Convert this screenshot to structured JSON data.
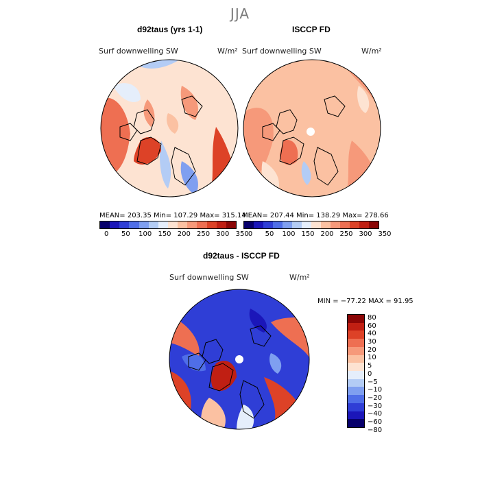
{
  "season": "JJA",
  "panel_left": {
    "title": "d92taus (yrs 1-1)",
    "variable": "Surf downwelling SW",
    "units": "W/m²",
    "stats": "MEAN= 203.35   Min= 107.29   Max= 315.14"
  },
  "panel_right": {
    "title": "ISCCP FD",
    "variable": "Surf downwelling SW",
    "units": "W/m²",
    "stats": "MEAN= 207.44   Min= 138.29   Max= 278.66"
  },
  "panel_diff": {
    "title": "d92taus - ISCCP FD",
    "variable": "Surf downwelling SW",
    "units": "W/m²",
    "stats": "MIN = −77.22  MAX =  91.95"
  },
  "colorbar_abs": {
    "colors": [
      "#07006b",
      "#1b16b9",
      "#2f3ed6",
      "#4f6ee8",
      "#7f9ff0",
      "#b3ccf5",
      "#e5eefb",
      "#fde3d2",
      "#fbc1a2",
      "#f6997a",
      "#ee6f52",
      "#dd4227",
      "#c01f13",
      "#8b0606"
    ],
    "labels": [
      "0",
      "50",
      "100",
      "150",
      "200",
      "250",
      "300",
      "350"
    ]
  },
  "colorbar_diff": {
    "colors": [
      "#07006b",
      "#1b16b9",
      "#2f3ed6",
      "#4f6ee8",
      "#7f9ff0",
      "#b3ccf5",
      "#e5eefb",
      "#fde3d2",
      "#fbc1a2",
      "#f6997a",
      "#ee6f52",
      "#dd4227",
      "#c01f13",
      "#8b0606"
    ],
    "labels": [
      "80",
      "60",
      "40",
      "30",
      "20",
      "10",
      "5",
      "0",
      "−5",
      "−10",
      "−20",
      "−30",
      "−40",
      "−60",
      "−80"
    ]
  }
}
